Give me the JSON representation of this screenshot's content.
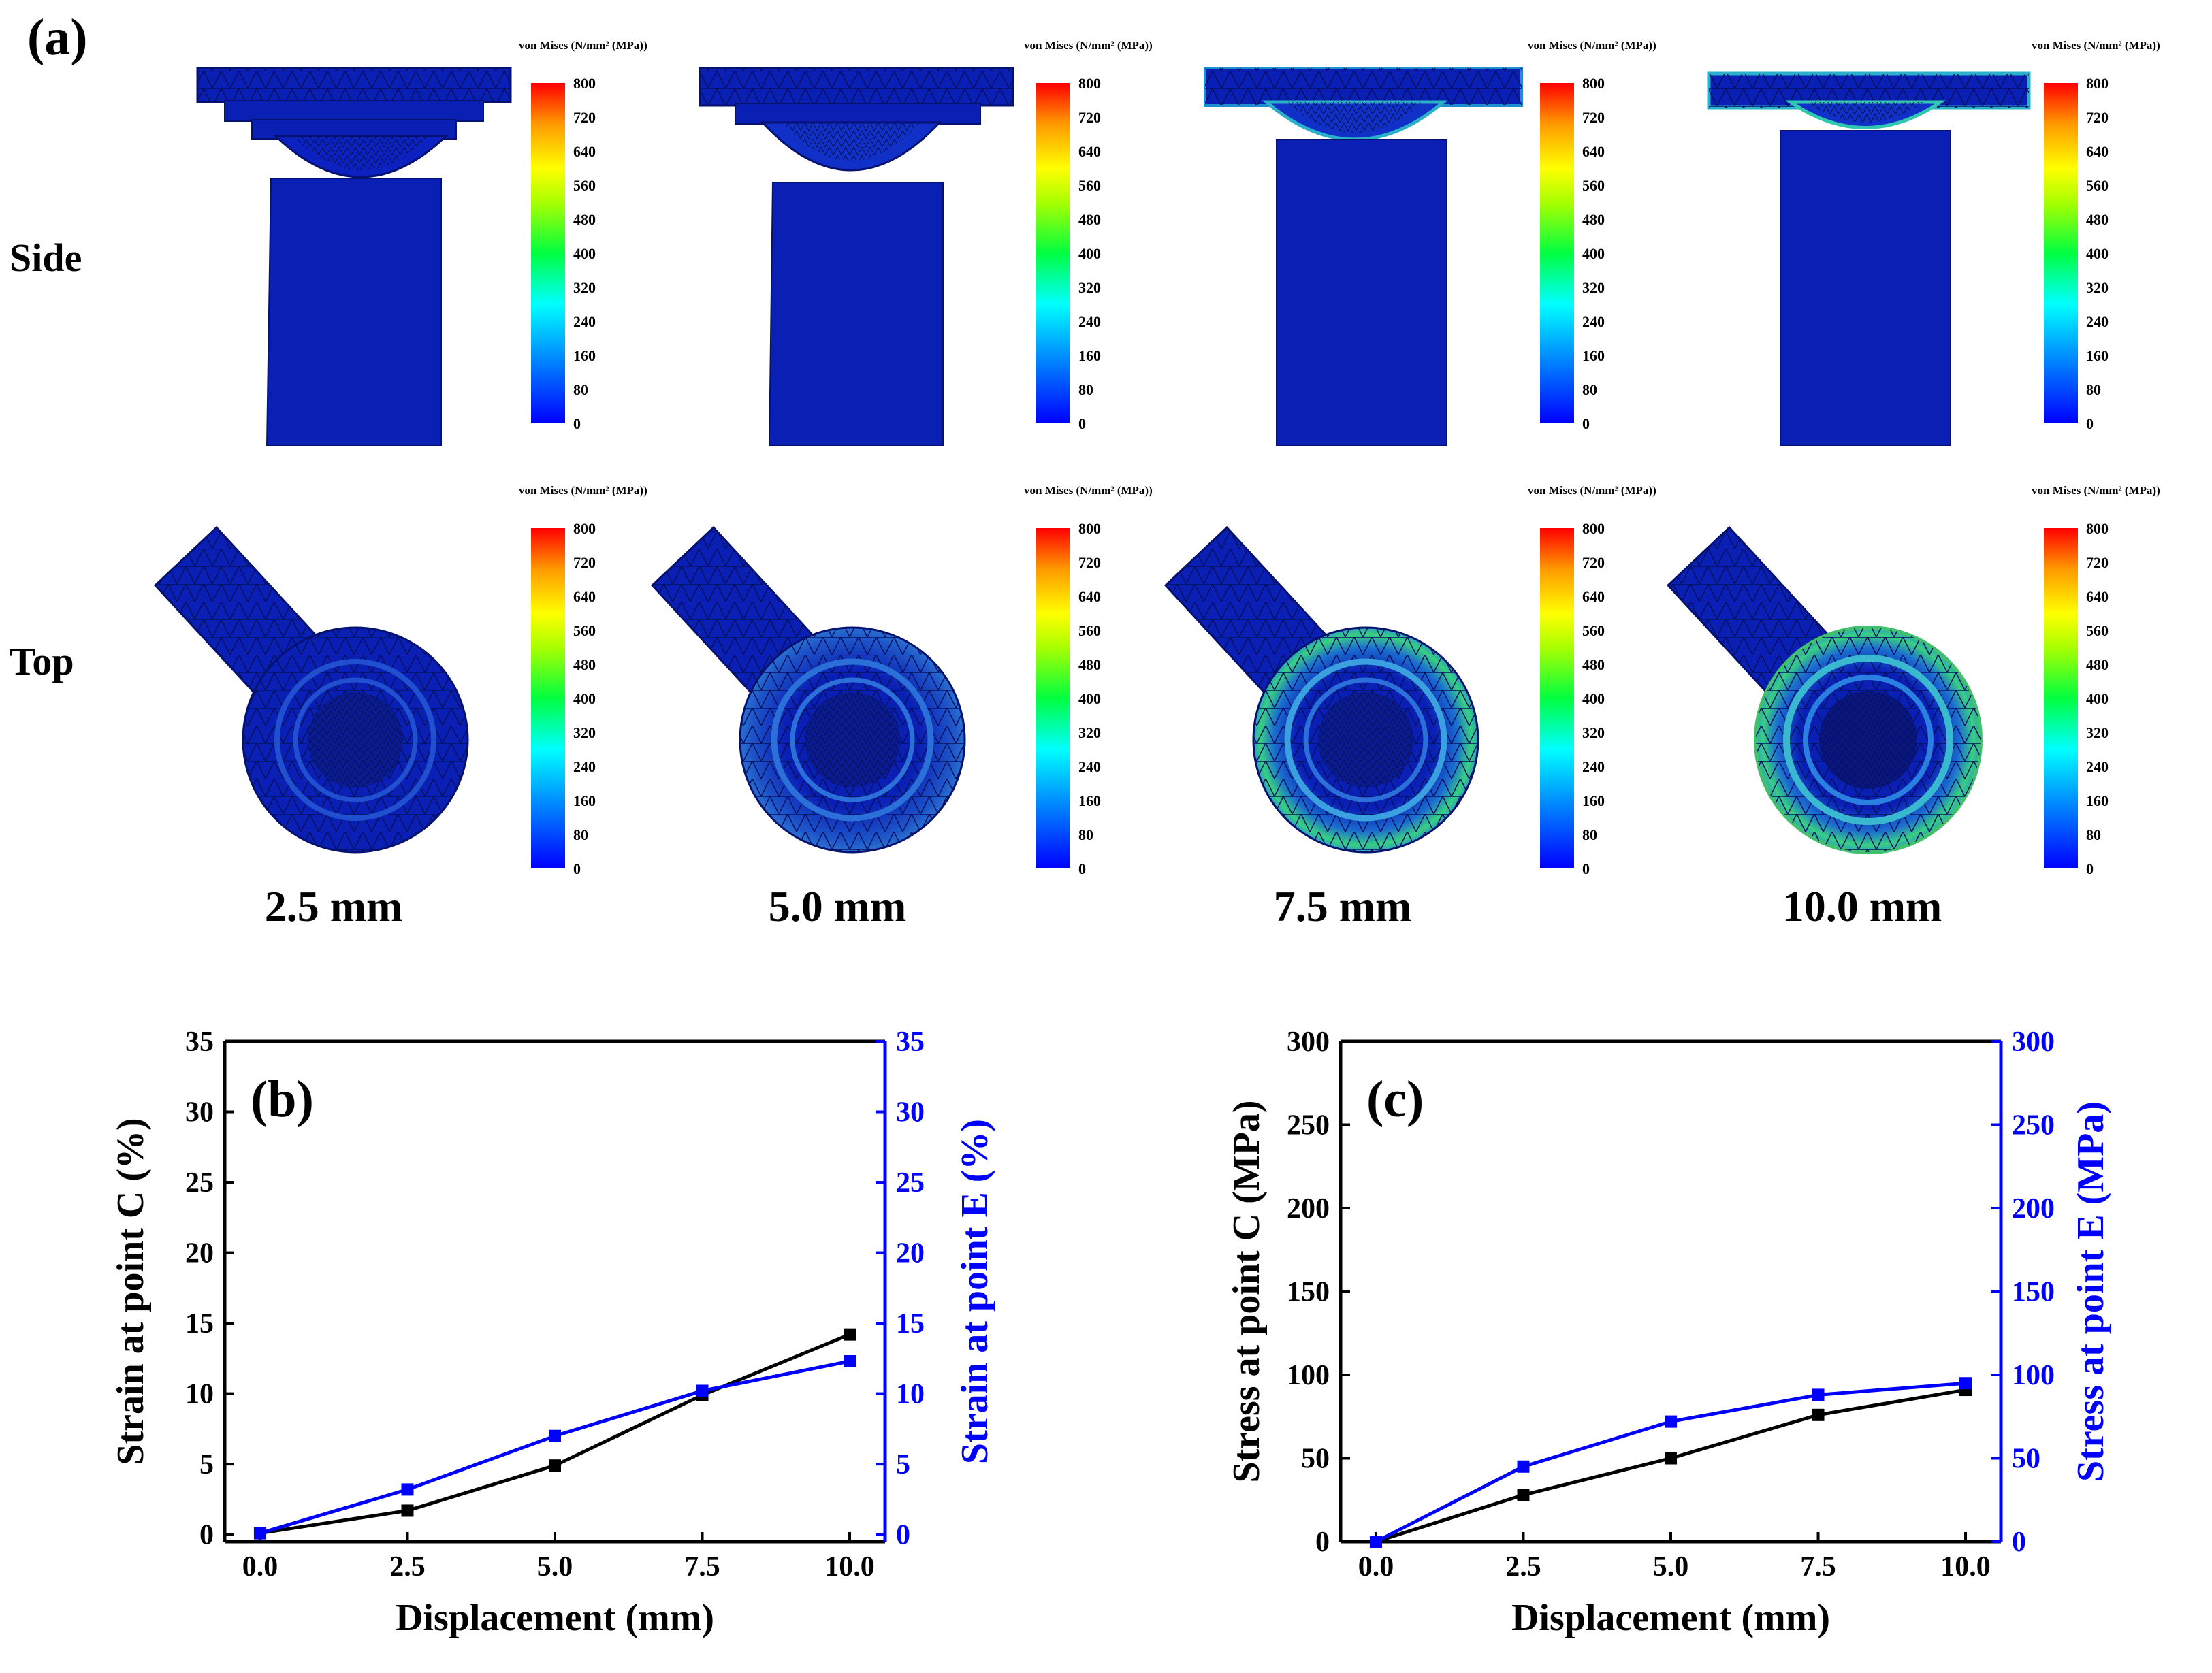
{
  "panel_a": {
    "label": "(a)",
    "rows": [
      "Side",
      "Top"
    ],
    "displacements": [
      "2.5 mm",
      "5.0 mm",
      "7.5 mm",
      "10.0 mm"
    ],
    "colorbar": {
      "title": "von Mises (N/mm² (MPa))",
      "ticks": [
        "800",
        "720",
        "640",
        "560",
        "480",
        "400",
        "320",
        "240",
        "160",
        "80",
        "0"
      ]
    }
  },
  "colors": {
    "black_series": "#000000",
    "blue_series": "#0000ff",
    "fea_base": "#0a1fb4",
    "fea_edge": "#061270"
  },
  "chart_data": [
    {
      "type": "line",
      "panel_label": "(b)",
      "xlabel": "Displacement (mm)",
      "ylabel": "Strain at point C (%)",
      "y2label": "Strain at point E (%)",
      "x": [
        0.0,
        2.5,
        5.0,
        7.5,
        10.0
      ],
      "xticks": [
        "0.0",
        "2.5",
        "5.0",
        "7.5",
        "10.0"
      ],
      "xlim": [
        -0.6,
        10.6
      ],
      "ylim": [
        -0.5,
        35
      ],
      "y2lim": [
        -0.5,
        35
      ],
      "yticks": [
        0,
        5,
        10,
        15,
        20,
        25,
        30,
        35
      ],
      "series": [
        {
          "axis": "left",
          "color": "#000000",
          "values": [
            0.1,
            1.7,
            4.9,
            9.9,
            14.2
          ]
        },
        {
          "axis": "right",
          "color": "#0000ff",
          "values": [
            0.1,
            3.2,
            7.0,
            10.2,
            12.3
          ]
        }
      ],
      "grid": false
    },
    {
      "type": "line",
      "panel_label": "(c)",
      "xlabel": "Displacement (mm)",
      "ylabel": "Stress at point C (MPa)",
      "y2label": "Stress at point E (MPa)",
      "x": [
        0.0,
        2.5,
        5.0,
        7.5,
        10.0
      ],
      "xticks": [
        "0.0",
        "2.5",
        "5.0",
        "7.5",
        "10.0"
      ],
      "xlim": [
        -0.6,
        10.6
      ],
      "ylim": [
        0,
        300
      ],
      "y2lim": [
        0,
        300
      ],
      "yticks": [
        0,
        50,
        100,
        150,
        200,
        250,
        300
      ],
      "series": [
        {
          "axis": "left",
          "color": "#000000",
          "values": [
            0,
            28,
            50,
            76,
            91
          ]
        },
        {
          "axis": "right",
          "color": "#0000ff",
          "values": [
            0,
            45,
            72,
            88,
            95
          ]
        }
      ],
      "grid": false
    }
  ]
}
